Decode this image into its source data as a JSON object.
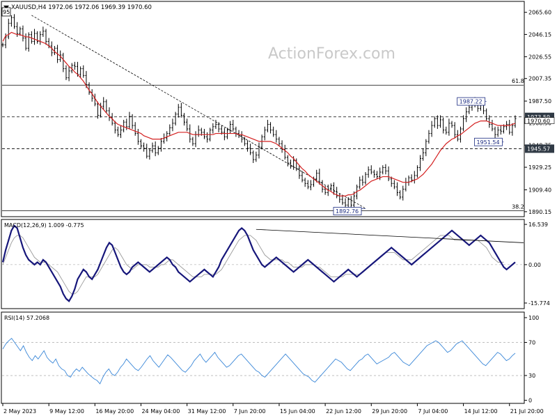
{
  "chart_data": {
    "type": "line",
    "header": {
      "symbol_line": "XAUUSD,H4  1972.06 1972.06 1969.39 1970.60",
      "corner_label": "95"
    },
    "watermark": "ActionForex.com",
    "price_panel": {
      "ylim": [
        1887,
        2074
      ],
      "ticks": [
        "2065.60",
        "2046.15",
        "2026.55",
        "2007.35",
        "1987.50",
        "1968.30",
        "1948.75",
        "1929.25",
        "1909.40",
        "1890.15"
      ],
      "ticks_values": [
        2065.6,
        2046.15,
        2026.55,
        2007.35,
        1987.5,
        1968.3,
        1948.75,
        1929.25,
        1909.4,
        1890.15
      ],
      "fib_levels": [
        {
          "label": "61.8",
          "value": 2001.5
        },
        {
          "label": "38.2",
          "value": 1891.0
        }
      ],
      "horizontal_lines": [
        {
          "label": "1973.59",
          "value": 1973.6,
          "style": "dashed"
        },
        {
          "label": "1945.57",
          "value": 1945.6,
          "style": "dashed"
        }
      ],
      "current_price_label": "1970.60",
      "current_price": 1970.6,
      "annotations": [
        {
          "text": "1987.22",
          "x": 168,
          "y": 1987.2
        },
        {
          "text": "1951.54",
          "x": 174,
          "y": 1951.5
        },
        {
          "text": "1892.76",
          "x": 126,
          "y": 1892.8
        }
      ],
      "trendline": [
        {
          "x": 10,
          "y": 2063
        },
        {
          "x": 126,
          "y": 1893
        }
      ],
      "price_series": [
        2037,
        2044,
        2056,
        2061,
        2053,
        2047,
        2051,
        2043,
        2034,
        2046,
        2040,
        2047,
        2040,
        2046,
        2049,
        2040,
        2036,
        2030,
        2034,
        2024,
        2028,
        2016,
        2008,
        2014,
        2019,
        2018,
        2011,
        2016,
        2010,
        2002,
        1995,
        1990,
        1985,
        1975,
        1983,
        1987,
        1979,
        1973,
        1968,
        1962,
        1958,
        1962,
        1969,
        1965,
        1974,
        1966,
        1959,
        1952,
        1948,
        1946,
        1939,
        1944,
        1948,
        1942,
        1946,
        1952,
        1955,
        1959,
        1964,
        1968,
        1976,
        1982,
        1975,
        1969,
        1963,
        1954,
        1950,
        1958,
        1962,
        1960,
        1956,
        1954,
        1962,
        1965,
        1967,
        1963,
        1960,
        1956,
        1962,
        1967,
        1963,
        1959,
        1957,
        1954,
        1950,
        1946,
        1942,
        1936,
        1940,
        1947,
        1956,
        1962,
        1967,
        1962,
        1958,
        1954,
        1950,
        1945,
        1938,
        1933,
        1930,
        1935,
        1928,
        1922,
        1918,
        1915,
        1912,
        1914,
        1919,
        1924,
        1916,
        1910,
        1907,
        1910,
        1913,
        1908,
        1904,
        1901,
        1898,
        1896,
        1901,
        1896,
        1904,
        1912,
        1918,
        1916,
        1923,
        1927,
        1925,
        1923,
        1921,
        1925,
        1929,
        1926,
        1919,
        1915,
        1912,
        1907,
        1903,
        1910,
        1916,
        1920,
        1918,
        1922,
        1929,
        1937,
        1942,
        1952,
        1959,
        1966,
        1972,
        1966,
        1971,
        1962,
        1960,
        1968,
        1966,
        1958,
        1954,
        1963,
        1972,
        1978,
        1982,
        1987,
        1984,
        1981,
        1986,
        1979,
        1972,
        1967,
        1963,
        1958,
        1962,
        1961,
        1965,
        1967,
        1960,
        1966,
        1972
      ],
      "sma_series": [
        2040,
        2045,
        2046,
        2048,
        2047,
        2046,
        2046,
        2045,
        2044,
        2044,
        2043,
        2042,
        2041,
        2040,
        2039,
        2038,
        2036,
        2034,
        2031,
        2029,
        2027,
        2024,
        2021,
        2018,
        2016,
        2013,
        2011,
        2008,
        2005,
        2001,
        1997,
        1994,
        1990,
        1986,
        1983,
        1980,
        1977,
        1974,
        1972,
        1969,
        1967,
        1966,
        1965,
        1964,
        1963,
        1962,
        1961,
        1960,
        1959,
        1957,
        1956,
        1955,
        1954,
        1954,
        1954,
        1954,
        1955,
        1956,
        1957,
        1958,
        1959,
        1960,
        1960,
        1960,
        1960,
        1959,
        1958,
        1958,
        1958,
        1958,
        1958,
        1958,
        1958,
        1958,
        1959,
        1959,
        1959,
        1959,
        1959,
        1959,
        1959,
        1959,
        1958,
        1958,
        1957,
        1956,
        1955,
        1954,
        1953,
        1952,
        1952,
        1952,
        1952,
        1952,
        1951,
        1950,
        1948,
        1946,
        1944,
        1942,
        1939,
        1937,
        1934,
        1931,
        1928,
        1926,
        1923,
        1921,
        1919,
        1917,
        1915,
        1913,
        1911,
        1909,
        1908,
        1906,
        1905,
        1904,
        1904,
        1904,
        1905,
        1905,
        1906,
        1908,
        1909,
        1911,
        1913,
        1915,
        1917,
        1918,
        1919,
        1920,
        1921,
        1921,
        1921,
        1920,
        1919,
        1918,
        1917,
        1916,
        1916,
        1916,
        1917,
        1918,
        1919,
        1921,
        1923,
        1926,
        1929,
        1932,
        1936,
        1940,
        1944,
        1947,
        1950,
        1952,
        1954,
        1955,
        1957,
        1958,
        1960,
        1962,
        1964,
        1966,
        1968,
        1969,
        1970,
        1970,
        1970,
        1969,
        1968,
        1967,
        1966,
        1966,
        1966,
        1966,
        1966,
        1967,
        1968
      ]
    },
    "macd_panel": {
      "label": "MACD(12,26,9) 1.009 -0.775",
      "ylim": [
        -17.5,
        18
      ],
      "ticks": [
        "16.539",
        "0.00",
        "-15.774"
      ],
      "ticks_values": [
        16.539,
        0,
        -15.774
      ],
      "macd_series": [
        1,
        6,
        10,
        14,
        16,
        15,
        11,
        7,
        4,
        2,
        1,
        0,
        1,
        0,
        2,
        1,
        -1,
        -3,
        -5,
        -7,
        -9,
        -12,
        -14,
        -15,
        -13,
        -10,
        -6,
        -4,
        -2,
        -3,
        -5,
        -6,
        -4,
        -2,
        1,
        4,
        7,
        9,
        8,
        5,
        2,
        -1,
        -3,
        -4,
        -3,
        -1,
        0,
        1,
        0,
        -1,
        -2,
        -3,
        -2,
        -1,
        0,
        1,
        2,
        3,
        2,
        0,
        -1,
        -3,
        -4,
        -5,
        -6,
        -7,
        -6,
        -5,
        -4,
        -3,
        -2,
        -3,
        -4,
        -5,
        -3,
        -1,
        2,
        4,
        6,
        8,
        10,
        12,
        14,
        15,
        14,
        12,
        9,
        6,
        4,
        2,
        0,
        -1,
        0,
        1,
        2,
        3,
        2,
        1,
        0,
        -1,
        -2,
        -3,
        -2,
        -1,
        0,
        1,
        2,
        1,
        0,
        -1,
        -2,
        -3,
        -4,
        -5,
        -6,
        -7,
        -6,
        -5,
        -4,
        -3,
        -2,
        -3,
        -4,
        -5,
        -4,
        -3,
        -2,
        -1,
        0,
        1,
        2,
        3,
        4,
        5,
        6,
        7,
        6,
        5,
        4,
        3,
        2,
        1,
        0,
        1,
        2,
        3,
        4,
        5,
        6,
        7,
        8,
        9,
        10,
        11,
        12,
        13,
        14,
        13,
        12,
        11,
        10,
        9,
        8,
        9,
        10,
        11,
        12,
        11,
        10,
        9,
        7,
        5,
        3,
        1,
        -1,
        -2,
        -1,
        0,
        1
      ],
      "signal_series": [
        0,
        3,
        6,
        9,
        11,
        12,
        12,
        11,
        9,
        7,
        5,
        3,
        2,
        1,
        1,
        1,
        0,
        -1,
        -2,
        -3,
        -5,
        -7,
        -9,
        -11,
        -12,
        -12,
        -11,
        -9,
        -7,
        -5,
        -5,
        -5,
        -5,
        -4,
        -2,
        0,
        2,
        4,
        6,
        7,
        6,
        4,
        2,
        0,
        -1,
        -2,
        -1,
        0,
        0,
        0,
        0,
        -1,
        -1,
        -1,
        -1,
        0,
        0,
        1,
        2,
        2,
        1,
        0,
        -1,
        -2,
        -3,
        -4,
        -5,
        -5,
        -5,
        -5,
        -4,
        -4,
        -4,
        -4,
        -4,
        -3,
        -2,
        0,
        2,
        4,
        6,
        8,
        10,
        11,
        12,
        12,
        12,
        11,
        10,
        8,
        6,
        4,
        3,
        2,
        2,
        2,
        2,
        2,
        1,
        1,
        0,
        -1,
        -1,
        -1,
        -1,
        0,
        0,
        0,
        0,
        -1,
        -1,
        -2,
        -3,
        -4,
        -5,
        -5,
        -5,
        -5,
        -5,
        -4,
        -4,
        -4,
        -4,
        -4,
        -4,
        -3,
        -2,
        -1,
        0,
        1,
        2,
        3,
        4,
        5,
        5,
        5,
        5,
        4,
        3,
        2,
        2,
        2,
        2,
        3,
        4,
        5,
        6,
        7,
        8,
        9,
        10,
        11,
        12,
        12,
        12,
        12,
        11,
        10,
        10,
        10,
        10,
        10,
        10,
        10,
        10,
        10,
        9,
        8,
        7,
        5,
        3,
        2,
        1,
        1,
        1
      ],
      "divergence_line": [
        {
          "x": 88,
          "y": 14.5
        },
        {
          "x": 185,
          "y": 9.0
        }
      ]
    },
    "rsi_panel": {
      "label": "RSI(14) 57.2068",
      "ylim": [
        -2,
        105
      ],
      "ticks": [
        "100",
        "70",
        "30",
        "0"
      ],
      "ticks_values": [
        100,
        70,
        30,
        0
      ],
      "levels": [
        70,
        30
      ],
      "rsi_series": [
        62,
        68,
        72,
        75,
        70,
        65,
        60,
        66,
        58,
        52,
        48,
        54,
        50,
        55,
        60,
        52,
        48,
        45,
        50,
        42,
        38,
        36,
        30,
        28,
        34,
        38,
        35,
        40,
        36,
        32,
        29,
        26,
        24,
        20,
        28,
        34,
        38,
        32,
        30,
        34,
        40,
        44,
        50,
        46,
        42,
        38,
        36,
        40,
        45,
        50,
        54,
        48,
        44,
        40,
        45,
        50,
        55,
        52,
        48,
        44,
        40,
        36,
        34,
        38,
        42,
        48,
        52,
        56,
        50,
        46,
        50,
        54,
        58,
        52,
        48,
        44,
        40,
        42,
        46,
        50,
        54,
        56,
        52,
        48,
        44,
        40,
        36,
        34,
        30,
        28,
        32,
        36,
        40,
        44,
        48,
        52,
        56,
        52,
        48,
        44,
        40,
        36,
        32,
        30,
        28,
        24,
        22,
        26,
        30,
        34,
        38,
        42,
        46,
        50,
        48,
        46,
        42,
        38,
        36,
        40,
        44,
        48,
        50,
        54,
        56,
        52,
        48,
        44,
        46,
        48,
        50,
        52,
        56,
        58,
        54,
        50,
        46,
        44,
        42,
        46,
        50,
        54,
        58,
        62,
        66,
        68,
        70,
        72,
        70,
        66,
        62,
        58,
        60,
        64,
        68,
        70,
        72,
        68,
        64,
        60,
        56,
        52,
        48,
        44,
        42,
        46,
        50,
        54,
        58,
        56,
        52,
        48,
        50,
        54,
        57
      ],
      "rsi_x_from": 2
    },
    "x_axis": {
      "labels": [
        "2 May 2023",
        "9 May 12:00",
        "16 May 20:00",
        "24 May 04:00",
        "31 May 12:00",
        "7 Jun 20:00",
        "15 Jun 04:00",
        "22 Jun 12:00",
        "29 Jun 20:00",
        "7 Jul 04:00",
        "14 Jul 12:00",
        "21 Jul 20:00"
      ],
      "label_index": [
        0,
        16,
        32,
        48,
        64,
        80,
        96,
        112,
        128,
        144,
        160,
        176
      ]
    }
  }
}
